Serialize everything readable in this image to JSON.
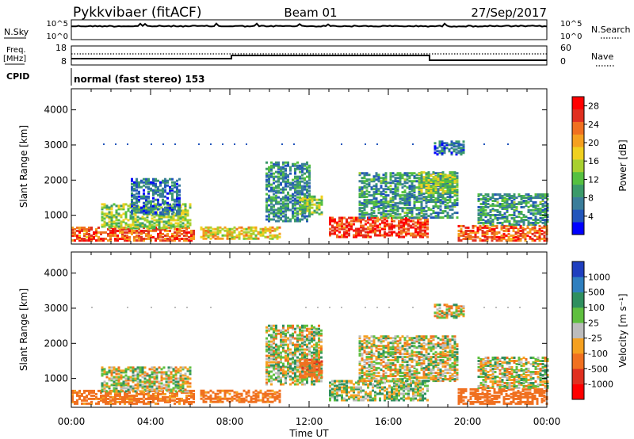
{
  "header": {
    "station": "Pykkvibaer (fitACF)",
    "beam": "Beam 01",
    "date": "27/Sep/2017"
  },
  "strips": {
    "nsky_label": "N.Sky",
    "nsky_ticks": [
      "10^5",
      "10^0"
    ],
    "nsearch_label": "N.Search",
    "nsearch_ticks": [
      "10^5",
      "10^0"
    ],
    "freq_label_1": "Freq.",
    "freq_label_2": "[MHz]",
    "freq_ticks": [
      "18",
      "8"
    ],
    "nave_label": "Nave",
    "nave_ticks": [
      "60",
      "0"
    ],
    "cpid_label": "CPID",
    "cpid_text": "normal (fast stereo) 153"
  },
  "chart_data": [
    {
      "type": "heatmap",
      "name": "power",
      "ylabel": "Slant Range [km]",
      "ylim": [
        180,
        4600
      ],
      "yticks": [
        "4000",
        "3000",
        "2000",
        "1000"
      ],
      "yticks_values": [
        4000,
        3000,
        2000,
        1000
      ],
      "xlim": [
        0,
        24
      ],
      "colorbar": {
        "label": "Power [dB]",
        "ticks": [
          "28",
          "24",
          "20",
          "16",
          "12",
          "8",
          "4"
        ],
        "tick_values": [
          28,
          24,
          20,
          16,
          12,
          8,
          4
        ],
        "range": [
          0,
          30
        ],
        "colors": [
          "#0000ff",
          "#2255bb",
          "#3a7d9a",
          "#3b9a6a",
          "#55c040",
          "#a8d030",
          "#f0d020",
          "#f5a020",
          "#f07020",
          "#e03020",
          "#ff0000"
        ]
      },
      "echo_regions": [
        {
          "t0": 0.0,
          "t1": 6.2,
          "r0": 250,
          "r1": 650,
          "level": 24
        },
        {
          "t0": 1.5,
          "t1": 6.0,
          "r0": 600,
          "r1": 1300,
          "level": 14
        },
        {
          "t0": 3.0,
          "t1": 5.5,
          "r0": 1000,
          "r1": 2000,
          "level": 6
        },
        {
          "t0": 6.5,
          "t1": 10.5,
          "r0": 300,
          "r1": 650,
          "level": 18
        },
        {
          "t0": 9.8,
          "t1": 12.0,
          "r0": 800,
          "r1": 2500,
          "level": 8
        },
        {
          "t0": 11.5,
          "t1": 12.6,
          "r0": 1000,
          "r1": 1500,
          "level": 14
        },
        {
          "t0": 13.0,
          "t1": 18.0,
          "r0": 350,
          "r1": 900,
          "level": 26
        },
        {
          "t0": 14.5,
          "t1": 19.5,
          "r0": 900,
          "r1": 2200,
          "level": 9
        },
        {
          "t0": 17.5,
          "t1": 19.5,
          "r0": 1600,
          "r1": 2200,
          "level": 14
        },
        {
          "t0": 18.3,
          "t1": 19.8,
          "r0": 2700,
          "r1": 3100,
          "level": 6
        },
        {
          "t0": 19.5,
          "t1": 24.0,
          "r0": 250,
          "r1": 700,
          "level": 24
        },
        {
          "t0": 20.5,
          "t1": 24.0,
          "r0": 700,
          "r1": 1600,
          "level": 9
        }
      ]
    },
    {
      "type": "heatmap",
      "name": "velocity",
      "ylabel": "Slant Range [km]",
      "ylim": [
        180,
        4600
      ],
      "yticks": [
        "4000",
        "3000",
        "2000",
        "1000"
      ],
      "yticks_values": [
        4000,
        3000,
        2000,
        1000
      ],
      "xlim": [
        0,
        24
      ],
      "xticks": [
        "00:00",
        "04:00",
        "08:00",
        "12:00",
        "16:00",
        "20:00",
        "00:00"
      ],
      "xticks_values": [
        0,
        4,
        8,
        12,
        16,
        20,
        24
      ],
      "xlabel": "Time UT",
      "colorbar": {
        "label": "Velocity [m s⁻¹]",
        "ticks": [
          "1000",
          "500",
          "100",
          "25",
          "-25",
          "-100",
          "-500",
          "-1000"
        ],
        "colors": [
          "#1f3fbf",
          "#2f7fbf",
          "#2f8f5f",
          "#5fbf3f",
          "#bcbcbc",
          "#f5a020",
          "#f07020",
          "#e03020",
          "#ff0000"
        ]
      },
      "echo_regions": [
        {
          "t0": 0.0,
          "t1": 6.2,
          "r0": 250,
          "r1": 650,
          "level": -200
        },
        {
          "t0": 1.5,
          "t1": 6.0,
          "r0": 600,
          "r1": 1300,
          "level": 10
        },
        {
          "t0": 6.5,
          "t1": 10.5,
          "r0": 300,
          "r1": 650,
          "level": -200
        },
        {
          "t0": 9.8,
          "t1": 12.6,
          "r0": 800,
          "r1": 2500,
          "level": 10
        },
        {
          "t0": 11.5,
          "t1": 12.6,
          "r0": 1000,
          "r1": 1500,
          "level": -400
        },
        {
          "t0": 13.0,
          "t1": 18.0,
          "r0": 350,
          "r1": 900,
          "level": 50
        },
        {
          "t0": 14.5,
          "t1": 19.5,
          "r0": 900,
          "r1": 2200,
          "level": 0
        },
        {
          "t0": 18.3,
          "t1": 19.8,
          "r0": 2700,
          "r1": 3100,
          "level": 0
        },
        {
          "t0": 19.5,
          "t1": 24.0,
          "r0": 250,
          "r1": 700,
          "level": -300
        },
        {
          "t0": 20.5,
          "t1": 24.0,
          "r0": 700,
          "r1": 1600,
          "level": 10
        }
      ]
    }
  ]
}
